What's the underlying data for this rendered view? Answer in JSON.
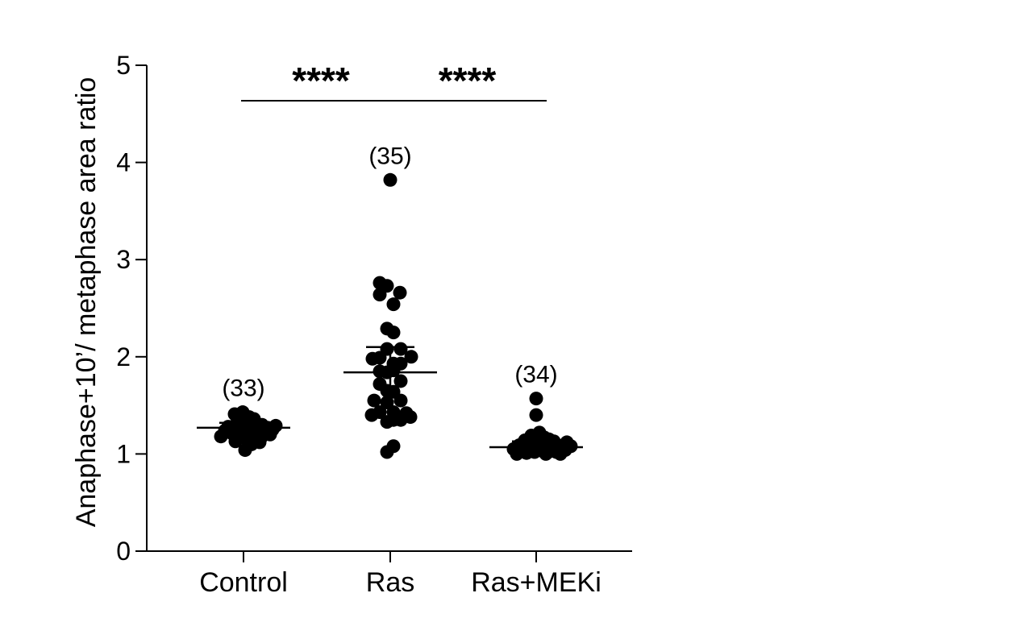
{
  "chart_data": {
    "type": "scatter",
    "title": "",
    "xlabel": "",
    "ylabel": "Anaphase+10’/ metaphase area ratio",
    "ylim": [
      0,
      5
    ],
    "yticks": [
      "0",
      "1",
      "2",
      "3",
      "4",
      "5"
    ],
    "grid": false,
    "categories": [
      "Control",
      "Ras",
      "Ras+MEKi"
    ],
    "groups": [
      {
        "category": "Control",
        "n_label": "(33)",
        "mean": 1.27,
        "sd_upper": 1.32,
        "sd_lower": 1.2,
        "points": [
          {
            "dx": -0.28,
            "y": 1.18
          },
          {
            "dx": -0.23,
            "y": 1.24
          },
          {
            "dx": -0.19,
            "y": 1.28
          },
          {
            "dx": -0.14,
            "y": 1.21
          },
          {
            "dx": -0.11,
            "y": 1.41
          },
          {
            "dx": -0.1,
            "y": 1.13
          },
          {
            "dx": -0.06,
            "y": 1.26
          },
          {
            "dx": -0.03,
            "y": 1.17
          },
          {
            "dx": -0.01,
            "y": 1.35
          },
          {
            "dx": -0.01,
            "y": 1.43
          },
          {
            "dx": 0.02,
            "y": 1.21
          },
          {
            "dx": 0.02,
            "y": 1.04
          },
          {
            "dx": 0.04,
            "y": 1.3
          },
          {
            "dx": 0.05,
            "y": 1.15
          },
          {
            "dx": 0.07,
            "y": 1.38
          },
          {
            "dx": 0.09,
            "y": 1.25
          },
          {
            "dx": 0.1,
            "y": 1.1
          },
          {
            "dx": 0.12,
            "y": 1.33
          },
          {
            "dx": 0.14,
            "y": 1.19
          },
          {
            "dx": 0.16,
            "y": 1.28
          },
          {
            "dx": 0.18,
            "y": 1.22
          },
          {
            "dx": 0.2,
            "y": 1.12
          },
          {
            "dx": 0.23,
            "y": 1.3
          },
          {
            "dx": 0.26,
            "y": 1.24
          },
          {
            "dx": 0.3,
            "y": 1.27
          },
          {
            "dx": 0.33,
            "y": 1.2
          },
          {
            "dx": 0.36,
            "y": 1.25
          },
          {
            "dx": 0.4,
            "y": 1.29
          },
          {
            "dx": -0.04,
            "y": 1.2
          },
          {
            "dx": 0.08,
            "y": 1.16
          },
          {
            "dx": 0.13,
            "y": 1.36
          },
          {
            "dx": -0.08,
            "y": 1.32
          },
          {
            "dx": 0.22,
            "y": 1.17
          }
        ]
      },
      {
        "category": "Ras",
        "n_label": "(35)",
        "mean": 1.84,
        "sd_upper": 2.1,
        "sd_lower": 1.38,
        "points": [
          {
            "dx": 0.0,
            "y": 3.82
          },
          {
            "dx": -0.13,
            "y": 2.76
          },
          {
            "dx": -0.04,
            "y": 2.73
          },
          {
            "dx": 0.12,
            "y": 2.66
          },
          {
            "dx": -0.13,
            "y": 2.64
          },
          {
            "dx": 0.04,
            "y": 2.54
          },
          {
            "dx": -0.04,
            "y": 2.29
          },
          {
            "dx": 0.04,
            "y": 2.25
          },
          {
            "dx": -0.04,
            "y": 2.08
          },
          {
            "dx": 0.13,
            "y": 2.08
          },
          {
            "dx": -0.22,
            "y": 1.98
          },
          {
            "dx": -0.13,
            "y": 1.99
          },
          {
            "dx": 0.26,
            "y": 2.0
          },
          {
            "dx": 0.04,
            "y": 1.93
          },
          {
            "dx": 0.13,
            "y": 1.93
          },
          {
            "dx": -0.13,
            "y": 1.85
          },
          {
            "dx": -0.04,
            "y": 1.84
          },
          {
            "dx": 0.04,
            "y": 1.86
          },
          {
            "dx": -0.13,
            "y": 1.72
          },
          {
            "dx": 0.13,
            "y": 1.75
          },
          {
            "dx": -0.04,
            "y": 1.65
          },
          {
            "dx": 0.04,
            "y": 1.64
          },
          {
            "dx": -0.04,
            "y": 1.53
          },
          {
            "dx": 0.13,
            "y": 1.55
          },
          {
            "dx": -0.23,
            "y": 1.4
          },
          {
            "dx": -0.13,
            "y": 1.43
          },
          {
            "dx": 0.04,
            "y": 1.43
          },
          {
            "dx": 0.13,
            "y": 1.35
          },
          {
            "dx": 0.25,
            "y": 1.38
          },
          {
            "dx": -0.04,
            "y": 1.33
          },
          {
            "dx": 0.04,
            "y": 1.35
          },
          {
            "dx": 0.04,
            "y": 1.08
          },
          {
            "dx": -0.04,
            "y": 1.02
          },
          {
            "dx": 0.2,
            "y": 1.42
          },
          {
            "dx": -0.2,
            "y": 1.55
          }
        ]
      },
      {
        "category": "Ras+MEKi",
        "n_label": "(34)",
        "mean": 1.07,
        "sd_upper": 1.13,
        "sd_lower": 1.03,
        "points": [
          {
            "dx": 0.0,
            "y": 1.57
          },
          {
            "dx": 0.0,
            "y": 1.4
          },
          {
            "dx": 0.04,
            "y": 1.22
          },
          {
            "dx": -0.06,
            "y": 1.19
          },
          {
            "dx": 0.1,
            "y": 1.17
          },
          {
            "dx": -0.14,
            "y": 1.14
          },
          {
            "dx": 0.16,
            "y": 1.15
          },
          {
            "dx": -0.03,
            "y": 1.14
          },
          {
            "dx": -0.1,
            "y": 1.1
          },
          {
            "dx": 0.07,
            "y": 1.11
          },
          {
            "dx": 0.22,
            "y": 1.13
          },
          {
            "dx": -0.21,
            "y": 1.09
          },
          {
            "dx": 0.13,
            "y": 1.08
          },
          {
            "dx": -0.28,
            "y": 1.05
          },
          {
            "dx": -0.18,
            "y": 1.03
          },
          {
            "dx": -0.08,
            "y": 1.05
          },
          {
            "dx": 0.03,
            "y": 1.07
          },
          {
            "dx": 0.27,
            "y": 1.09
          },
          {
            "dx": 0.33,
            "y": 1.06
          },
          {
            "dx": 0.38,
            "y": 1.12
          },
          {
            "dx": 0.43,
            "y": 1.08
          },
          {
            "dx": -0.02,
            "y": 1.02
          },
          {
            "dx": 0.08,
            "y": 1.03
          },
          {
            "dx": 0.18,
            "y": 1.05
          },
          {
            "dx": 0.25,
            "y": 1.02
          },
          {
            "dx": 0.3,
            "y": 1.0
          },
          {
            "dx": -0.12,
            "y": 1.01
          },
          {
            "dx": -0.24,
            "y": 1.0
          },
          {
            "dx": 0.12,
            "y": 1.0
          },
          {
            "dx": 0.36,
            "y": 1.04
          },
          {
            "dx": -0.04,
            "y": 1.09
          },
          {
            "dx": 0.2,
            "y": 1.1
          },
          {
            "dx": 0.0,
            "y": 1.05
          },
          {
            "dx": 0.15,
            "y": 1.02
          }
        ]
      }
    ],
    "significance": [
      {
        "from": "Control",
        "to": "Ras",
        "label": "****"
      },
      {
        "from": "Ras",
        "to": "Ras+MEKi",
        "label": "****"
      }
    ],
    "point_color": "#000000"
  }
}
